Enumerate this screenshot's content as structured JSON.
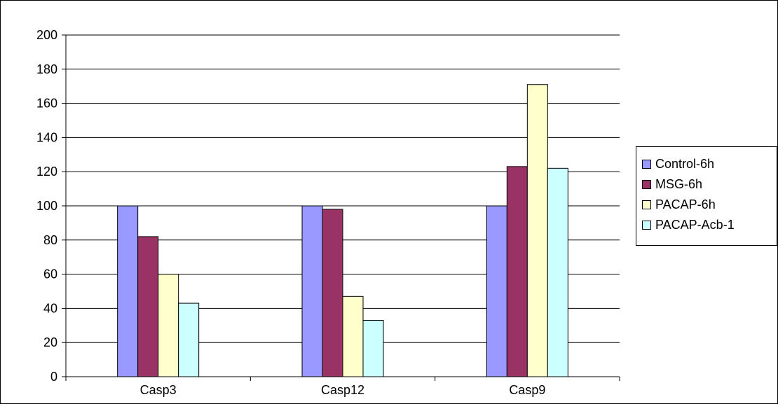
{
  "chart_data": {
    "type": "bar",
    "categories": [
      "Casp3",
      "Casp12",
      "Casp9"
    ],
    "series": [
      {
        "name": "Control-6h",
        "color": "#9999FF",
        "values": [
          100,
          100,
          100
        ]
      },
      {
        "name": "MSG-6h",
        "color": "#993366",
        "values": [
          82,
          98,
          123
        ]
      },
      {
        "name": "PACAP-6h",
        "color": "#FFFFCC",
        "values": [
          60,
          47,
          171
        ]
      },
      {
        "name": "PACAP-Acb-1",
        "color": "#CCFFFF",
        "values": [
          43,
          33,
          122
        ]
      }
    ],
    "ylim": [
      0,
      200
    ],
    "yticks": [
      "0",
      "20",
      "40",
      "60",
      "80",
      "100",
      "120",
      "140",
      "160",
      "180",
      "200"
    ],
    "grid": true,
    "legend_position": "right"
  }
}
